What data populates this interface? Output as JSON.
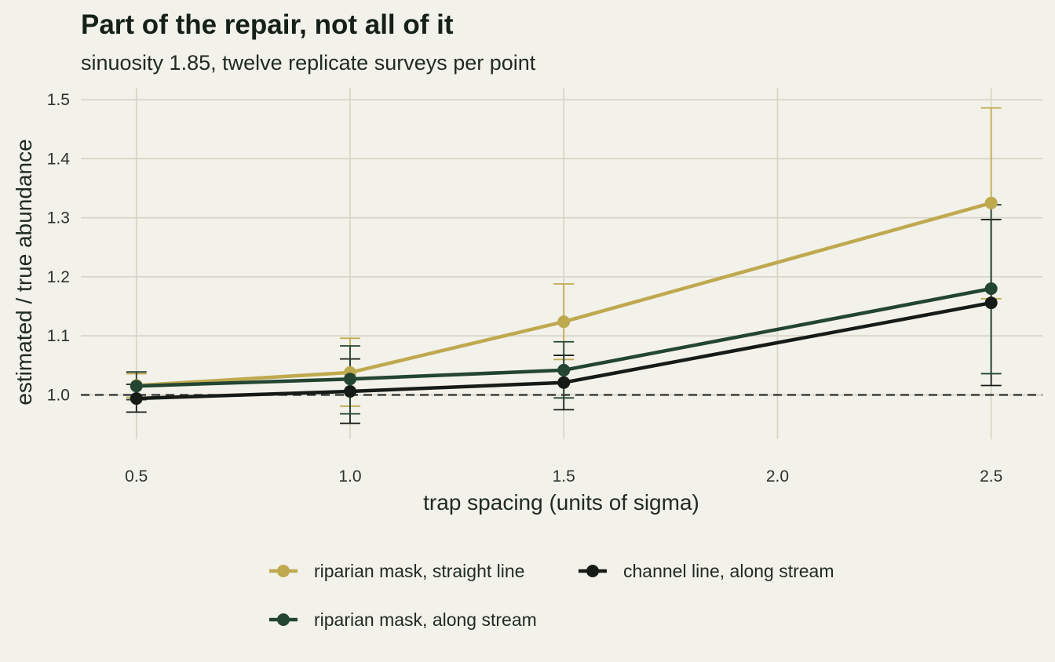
{
  "chart_data": {
    "type": "line",
    "title": "Part of the repair, not all of it",
    "subtitle": "sinuosity 1.85, twelve replicate surveys per point",
    "xlabel": "trap spacing (units of sigma)",
    "ylabel": "estimated / true abundance",
    "xlim": [
      0.37,
      2.62
    ],
    "ylim": [
      0.925,
      1.52
    ],
    "xticks": [
      "0.5",
      "1.0",
      "1.5",
      "2.0",
      "2.5"
    ],
    "yticks": [
      "1.0",
      "1.1",
      "1.2",
      "1.3",
      "1.4",
      "1.5"
    ],
    "grid": true,
    "reference_line": {
      "y": 1.0,
      "style": "dashed"
    },
    "legend_position": "bottom",
    "x": [
      0.5,
      1.0,
      1.5,
      2.5
    ],
    "series": [
      {
        "name": "riparian mask, straight line",
        "color": "#bfa94f",
        "values": [
          1.016,
          1.038,
          1.124,
          1.325
        ],
        "error_low": [
          0.996,
          0.981,
          1.06,
          1.163
        ],
        "error_high": [
          1.036,
          1.096,
          1.188,
          1.486
        ]
      },
      {
        "name": "channel line, along stream",
        "color": "#161b17",
        "values": [
          0.994,
          1.006,
          1.021,
          1.156
        ],
        "error_low": [
          0.971,
          0.952,
          0.975,
          1.016
        ],
        "error_high": [
          1.018,
          1.061,
          1.067,
          1.297
        ]
      },
      {
        "name": "riparian mask, along stream",
        "color": "#234532",
        "values": [
          1.015,
          1.027,
          1.042,
          1.18
        ],
        "error_low": [
          0.992,
          0.968,
          0.995,
          1.036
        ],
        "error_high": [
          1.039,
          1.083,
          1.09,
          1.322
        ]
      }
    ]
  }
}
